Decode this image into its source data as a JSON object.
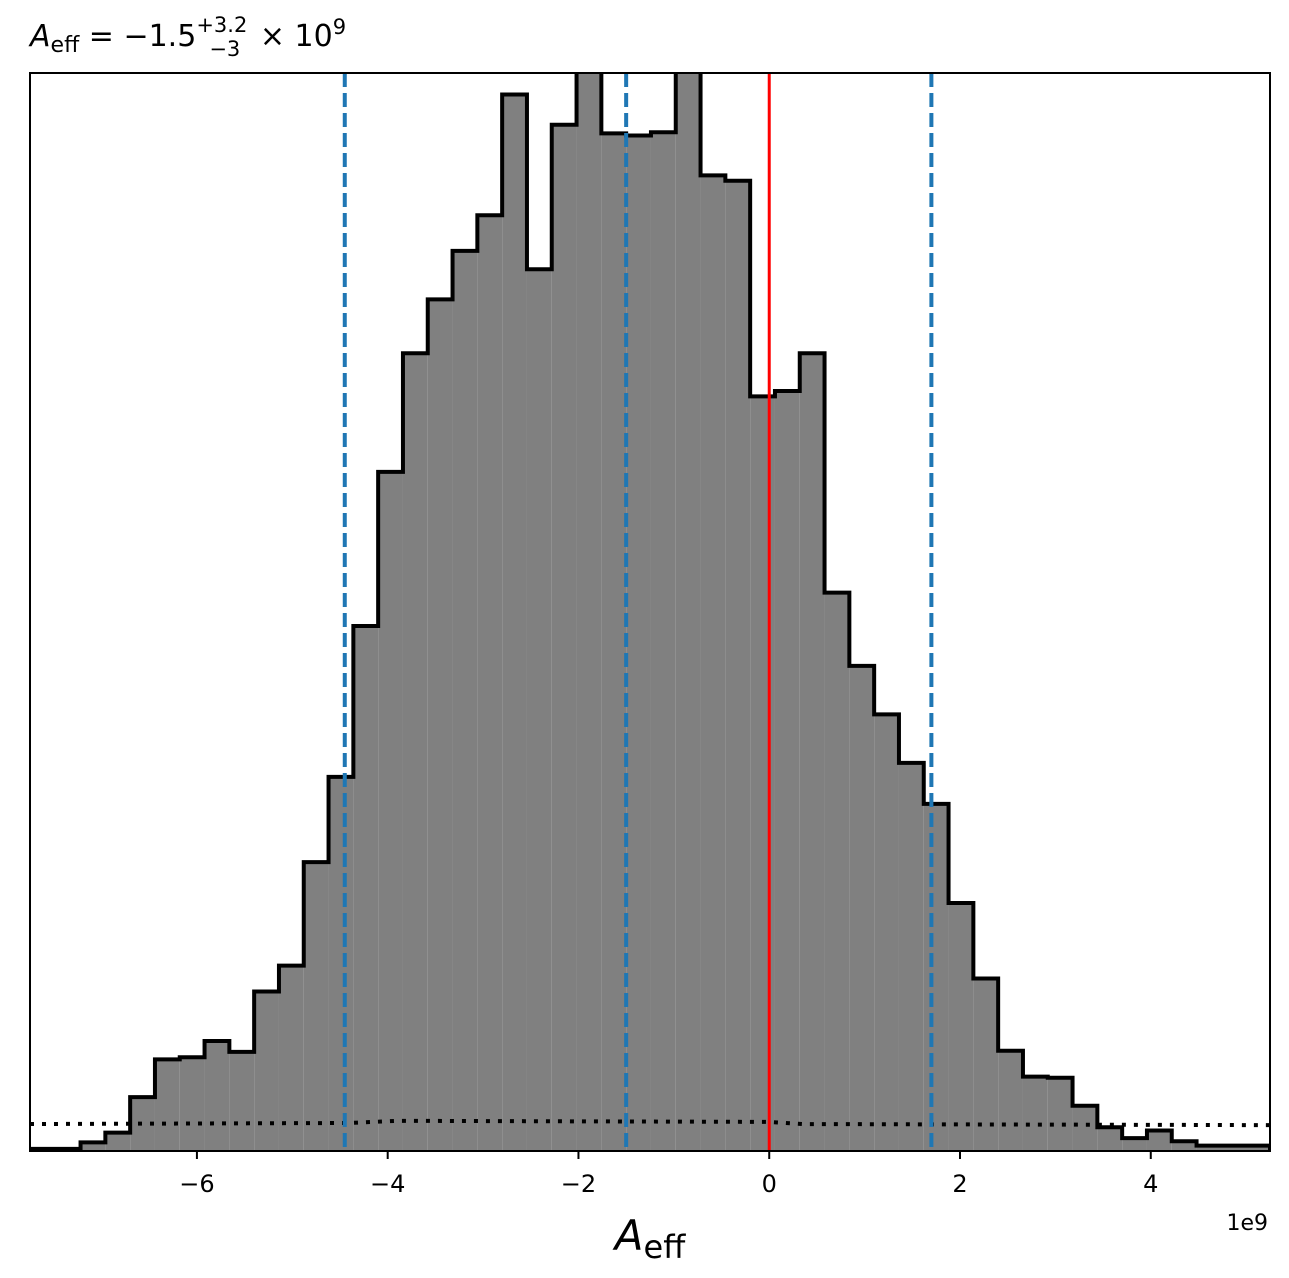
{
  "chart_data": {
    "type": "histogram",
    "title": {
      "symbol": "A",
      "subscript": "eff",
      "equals": " = ",
      "median": "−1.5",
      "upper": "+3.2",
      "lower": "−3",
      "times": " × ",
      "base": "10",
      "exponent": "9"
    },
    "xlabel": {
      "symbol": "A",
      "subscript": "eff"
    },
    "offset_text": "1e9",
    "xlim": [
      -7.75,
      5.25
    ],
    "ylim": [
      0,
      1.0
    ],
    "xticks": [
      {
        "value": -6,
        "label": "−6"
      },
      {
        "value": -4,
        "label": "−4"
      },
      {
        "value": -2,
        "label": "−2"
      },
      {
        "value": 0,
        "label": "0"
      },
      {
        "value": 2,
        "label": "2"
      },
      {
        "value": 4,
        "label": "4"
      }
    ],
    "bin_edges": [
      -7.75,
      -7.22,
      -6.96,
      -6.7,
      -6.44,
      -6.18,
      -5.92,
      -5.66,
      -5.4,
      -5.14,
      -4.88,
      -4.62,
      -4.36,
      -4.1,
      -3.84,
      -3.58,
      -3.32,
      -3.06,
      -2.8,
      -2.54,
      -2.28,
      -2.02,
      -1.76,
      -1.5,
      -1.24,
      -0.98,
      -0.72,
      -0.46,
      -0.2,
      0.06,
      0.32,
      0.58,
      0.84,
      1.1,
      1.36,
      1.62,
      1.88,
      2.14,
      2.4,
      2.66,
      2.92,
      3.18,
      3.44,
      3.7,
      3.96,
      4.22,
      4.48,
      5.25
    ],
    "counts": [
      0.002,
      0.008,
      0.017,
      0.05,
      0.085,
      0.087,
      0.102,
      0.092,
      0.148,
      0.172,
      0.268,
      0.347,
      0.487,
      0.63,
      0.74,
      0.79,
      0.835,
      0.868,
      0.98,
      0.818,
      0.952,
      1.02,
      0.944,
      0.942,
      0.945,
      1.02,
      0.905,
      0.9,
      0.7,
      0.705,
      0.74,
      0.518,
      0.45,
      0.405,
      0.36,
      0.322,
      0.23,
      0.16,
      0.093,
      0.069,
      0.068,
      0.042,
      0.022,
      0.012,
      0.019,
      0.009,
      0.005
    ],
    "fill_color": "#808080",
    "edge_color": "#000000",
    "quantile_lines": {
      "values": [
        -4.45,
        -1.5,
        1.7
      ],
      "color": "#1f77b4",
      "style": "dashed"
    },
    "truth_line": {
      "value": 0,
      "color": "#ff0000",
      "style": "solid"
    },
    "prior_line": {
      "x": [
        -7.75,
        -4.4,
        -3.9,
        0.0,
        0.35,
        5.25
      ],
      "y": [
        0.025,
        0.026,
        0.028,
        0.027,
        0.025,
        0.024
      ],
      "color": "#000000",
      "style": "dotted"
    }
  }
}
